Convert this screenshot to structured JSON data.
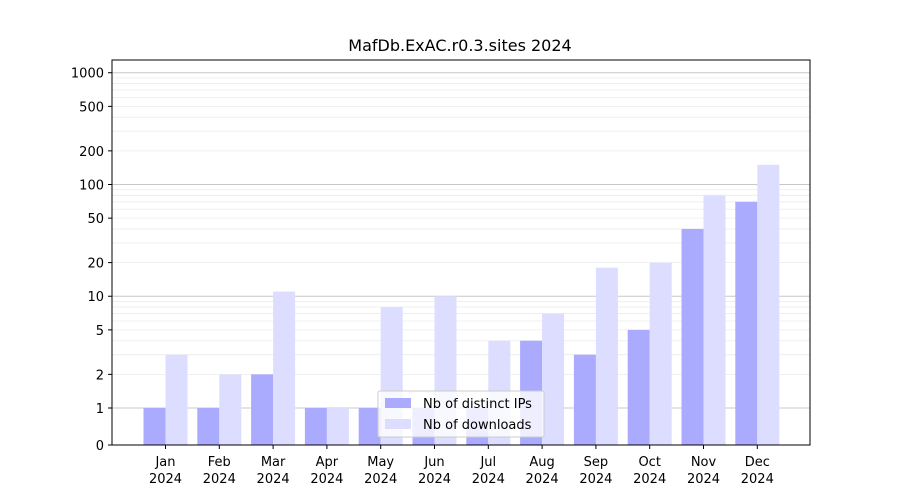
{
  "chart_data": {
    "type": "bar",
    "title": "MafDb.ExAC.r0.3.sites 2024",
    "xlabel": "",
    "ylabel": "",
    "yscale": "symlog",
    "ylim": [
      0,
      1300
    ],
    "yticks": [
      0,
      1,
      2,
      5,
      10,
      20,
      50,
      100,
      200,
      500,
      1000
    ],
    "grid": true,
    "legend_position": "bottom-center",
    "categories": [
      [
        "Jan",
        "2024"
      ],
      [
        "Feb",
        "2024"
      ],
      [
        "Mar",
        "2024"
      ],
      [
        "Apr",
        "2024"
      ],
      [
        "May",
        "2024"
      ],
      [
        "Jun",
        "2024"
      ],
      [
        "Jul",
        "2024"
      ],
      [
        "Aug",
        "2024"
      ],
      [
        "Sep",
        "2024"
      ],
      [
        "Oct",
        "2024"
      ],
      [
        "Nov",
        "2024"
      ],
      [
        "Dec",
        "2024"
      ]
    ],
    "series": [
      {
        "name": "Nb of distinct IPs",
        "color": "#aaaaff",
        "values": [
          1,
          1,
          2,
          1,
          1,
          1,
          1,
          4,
          3,
          5,
          40,
          70
        ]
      },
      {
        "name": "Nb of downloads",
        "color": "#ddddff",
        "values": [
          3,
          2,
          11,
          1,
          8,
          10,
          4,
          7,
          18,
          20,
          80,
          150
        ]
      }
    ]
  }
}
